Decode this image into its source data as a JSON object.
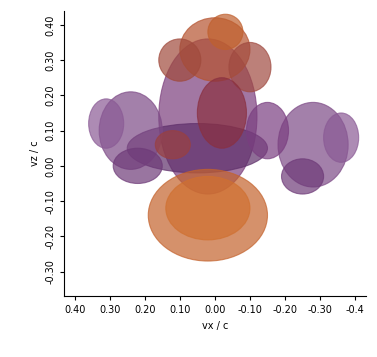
{
  "chart_data": {
    "type": "blobs",
    "x_label": "vx / c",
    "y_label": "vz / c",
    "xlim": [
      0.43,
      -0.43
    ],
    "ylim": [
      -0.37,
      0.44
    ],
    "xticks": [
      {
        "value": 0.4,
        "label": "0.40"
      },
      {
        "value": 0.3,
        "label": "0.30"
      },
      {
        "value": 0.2,
        "label": "0.20"
      },
      {
        "value": 0.1,
        "label": "0.10"
      },
      {
        "value": 0,
        "label": "0.00"
      },
      {
        "value": -0.1,
        "label": "-0.10"
      },
      {
        "value": -0.2,
        "label": "-0.20"
      },
      {
        "value": -0.3,
        "label": "-0.30"
      },
      -0.4
    ],
    "yticks": [
      {
        "value": 0.4,
        "label": "0.40"
      },
      {
        "value": 0.3,
        "label": "0.30"
      },
      {
        "value": 0.2,
        "label": "0.20"
      },
      {
        "value": 0.1,
        "label": "0.10"
      },
      {
        "value": 0,
        "label": "0.00"
      },
      {
        "value": -0.1,
        "label": "-0.10"
      },
      {
        "value": -0.2,
        "label": "-0.20"
      },
      {
        "value": -0.3,
        "label": "-0.30"
      }
    ],
    "regions": [
      {
        "vx": 0.02,
        "vz": 0.14,
        "rx": 0.14,
        "rz": 0.22,
        "color": "#7b3e7c"
      },
      {
        "vx": 0.05,
        "vz": 0.05,
        "rx": 0.2,
        "rz": 0.07,
        "color": "#5e2f6a"
      },
      {
        "vx": 0.24,
        "vz": 0.1,
        "rx": 0.09,
        "rz": 0.11,
        "color": "#7d4a86"
      },
      {
        "vx": 0.31,
        "vz": 0.12,
        "rx": 0.05,
        "rz": 0.07,
        "color": "#8a5a95"
      },
      {
        "vx": 0.22,
        "vz": 0.0,
        "rx": 0.07,
        "rz": 0.05,
        "color": "#6e3a78"
      },
      {
        "vx": -0.28,
        "vz": 0.06,
        "rx": 0.1,
        "rz": 0.12,
        "color": "#7d4a86"
      },
      {
        "vx": -0.36,
        "vz": 0.08,
        "rx": 0.05,
        "rz": 0.07,
        "color": "#8a5a95"
      },
      {
        "vx": -0.25,
        "vz": -0.03,
        "rx": 0.06,
        "rz": 0.05,
        "color": "#6e3a78"
      },
      {
        "vx": -0.15,
        "vz": 0.1,
        "rx": 0.06,
        "rz": 0.08,
        "color": "#7a3e80"
      },
      {
        "vx": 0.0,
        "vz": 0.33,
        "rx": 0.1,
        "rz": 0.09,
        "color": "#b5532f"
      },
      {
        "vx": -0.03,
        "vz": 0.38,
        "rx": 0.05,
        "rz": 0.05,
        "color": "#c0602e"
      },
      {
        "vx": 0.1,
        "vz": 0.3,
        "rx": 0.06,
        "rz": 0.06,
        "color": "#a04a3c"
      },
      {
        "vx": -0.1,
        "vz": 0.28,
        "rx": 0.06,
        "rz": 0.07,
        "color": "#a04a40"
      },
      {
        "vx": -0.02,
        "vz": 0.15,
        "rx": 0.07,
        "rz": 0.1,
        "color": "#8a3040"
      },
      {
        "vx": 0.12,
        "vz": 0.06,
        "rx": 0.05,
        "rz": 0.04,
        "color": "#9a4040"
      },
      {
        "vx": 0.02,
        "vz": -0.14,
        "rx": 0.17,
        "rz": 0.13,
        "color": "#c4622c"
      },
      {
        "vx": 0.02,
        "vz": -0.12,
        "rx": 0.12,
        "rz": 0.09,
        "color": "#d07030"
      }
    ]
  }
}
